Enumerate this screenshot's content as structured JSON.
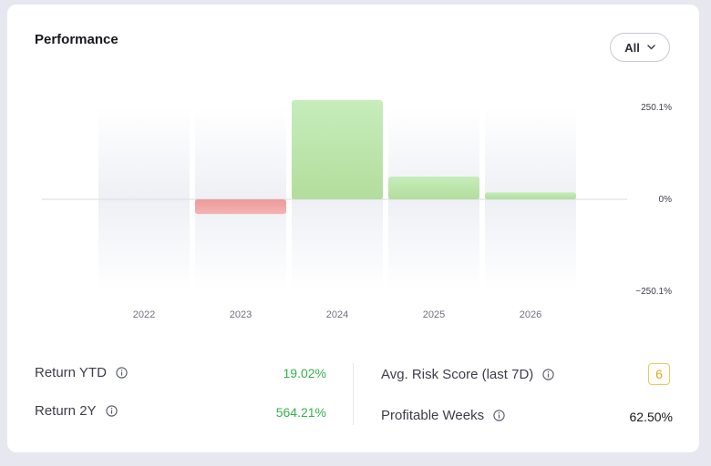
{
  "header": {
    "title": "Performance",
    "filter_label": "All"
  },
  "chart_data": {
    "type": "bar",
    "categories": [
      "2022",
      "2023",
      "2024",
      "2025",
      "2026"
    ],
    "values": [
      0,
      -40,
      270,
      62,
      19.02
    ],
    "y_ticks": [
      "250.1%",
      "0%",
      "−250.1%"
    ],
    "ylim": [
      -250.1,
      250.1
    ],
    "colors": {
      "positive": "#b9e3a8",
      "negative": "#f0a3a3"
    }
  },
  "stats": {
    "return_ytd": {
      "label": "Return YTD",
      "value": "19.02%"
    },
    "return_2y": {
      "label": "Return 2Y",
      "value": "564.21%"
    },
    "risk_score": {
      "label": "Avg. Risk Score (last 7D)",
      "value": "6"
    },
    "profitable_weeks": {
      "label": "Profitable Weeks",
      "value": "62.50%"
    }
  }
}
